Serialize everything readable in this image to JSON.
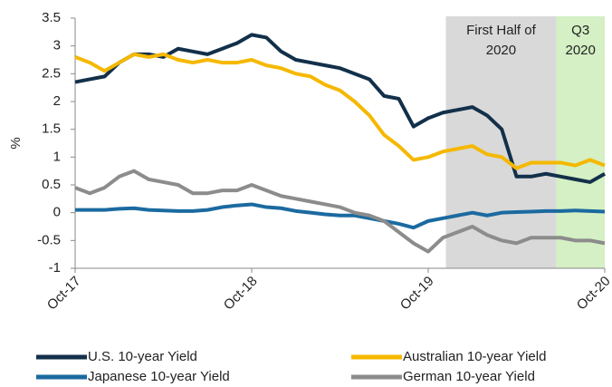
{
  "chart_data": {
    "type": "line",
    "y_label": "%",
    "x": [
      0,
      1,
      2,
      3,
      4,
      5,
      6,
      7,
      8,
      9,
      10,
      11,
      12,
      13,
      14,
      15,
      16,
      17,
      18,
      19,
      20,
      21,
      22,
      23,
      24,
      25,
      26,
      27,
      28,
      29,
      30,
      31,
      32,
      33,
      34,
      35,
      36
    ],
    "xlim": [
      0,
      36
    ],
    "xticks": [
      {
        "value": 0,
        "label": "Oct-17"
      },
      {
        "value": 12,
        "label": "Oct-18"
      },
      {
        "value": 24,
        "label": "Oct-19"
      },
      {
        "value": 36,
        "label": "Oct-20"
      }
    ],
    "ylim": [
      -1,
      3.5
    ],
    "yticks": [
      3.5,
      3,
      2.5,
      2,
      1.5,
      1,
      0.5,
      0,
      -0.5,
      -1
    ],
    "spans": [
      {
        "lines": [
          "First Half of",
          "2020"
        ],
        "start": 25.2,
        "end": 32.7,
        "color": "#d9d9d9"
      },
      {
        "lines": [
          "Q3",
          "2020"
        ],
        "start": 32.7,
        "end": 36,
        "color": "#d4f0c4"
      }
    ],
    "series": [
      {
        "name": "U.S. 10-year Yield",
        "color": "#12304a",
        "values": [
          2.35,
          2.4,
          2.45,
          2.7,
          2.85,
          2.85,
          2.8,
          2.95,
          2.9,
          2.85,
          2.95,
          3.05,
          3.2,
          3.15,
          2.9,
          2.75,
          2.7,
          2.65,
          2.6,
          2.5,
          2.4,
          2.1,
          2.05,
          1.55,
          1.7,
          1.8,
          1.85,
          1.9,
          1.75,
          1.5,
          0.65,
          0.65,
          0.7,
          0.65,
          0.6,
          0.55,
          0.7
        ]
      },
      {
        "name": "Australian 10-year Yield",
        "color": "#f5b800",
        "values": [
          2.8,
          2.7,
          2.55,
          2.7,
          2.85,
          2.8,
          2.85,
          2.75,
          2.7,
          2.75,
          2.7,
          2.7,
          2.75,
          2.65,
          2.6,
          2.5,
          2.45,
          2.3,
          2.2,
          2.0,
          1.75,
          1.4,
          1.2,
          0.95,
          1.0,
          1.1,
          1.15,
          1.2,
          1.05,
          1.0,
          0.8,
          0.9,
          0.9,
          0.9,
          0.85,
          0.95,
          0.85
        ]
      },
      {
        "name": "Japanese 10-year Yield",
        "color": "#1b6aa0",
        "values": [
          0.05,
          0.05,
          0.05,
          0.07,
          0.08,
          0.05,
          0.04,
          0.03,
          0.03,
          0.05,
          0.1,
          0.13,
          0.15,
          0.1,
          0.08,
          0.03,
          0.0,
          -0.03,
          -0.05,
          -0.05,
          -0.1,
          -0.15,
          -0.2,
          -0.27,
          -0.15,
          -0.1,
          -0.05,
          0.0,
          -0.05,
          0.0,
          0.01,
          0.02,
          0.03,
          0.03,
          0.04,
          0.03,
          0.02
        ]
      },
      {
        "name": "German 10-year Yield",
        "color": "#8c8c8c",
        "values": [
          0.45,
          0.35,
          0.45,
          0.65,
          0.75,
          0.6,
          0.55,
          0.5,
          0.35,
          0.35,
          0.4,
          0.4,
          0.5,
          0.4,
          0.3,
          0.25,
          0.2,
          0.15,
          0.1,
          0.0,
          -0.05,
          -0.15,
          -0.35,
          -0.55,
          -0.7,
          -0.45,
          -0.35,
          -0.25,
          -0.4,
          -0.5,
          -0.55,
          -0.45,
          -0.45,
          -0.45,
          -0.5,
          -0.5,
          -0.55
        ]
      }
    ]
  }
}
